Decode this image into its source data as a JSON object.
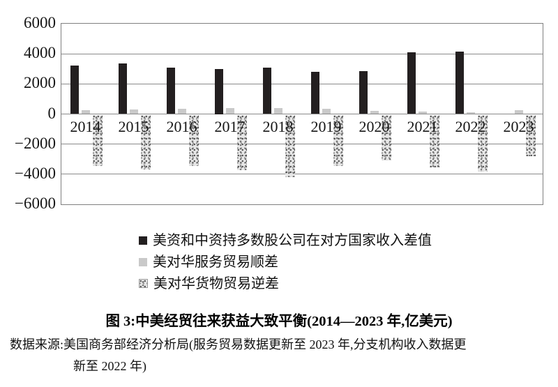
{
  "figure": {
    "caption": "图 3:中美经贸往来获益大致平衡(2014—2023 年,亿美元)",
    "source_line1": "数据来源:美国商务部经济分析局(服务贸易数据更新至 2023 年,分支机构收入数据更",
    "source_line2": "新至 2022 年)"
  },
  "colors": {
    "income_diff_bar": "#231f20",
    "services_bar": "#c9c9c9",
    "goods_bar_base": "#e7e7e7",
    "grid": "#8a8a8a",
    "text": "#161616"
  },
  "chart_data": {
    "type": "bar",
    "title": "中美经贸往来获益大致平衡(2014—2023 年,亿美元)",
    "unit": "亿美元",
    "categories": [
      "2014",
      "2015",
      "2016",
      "2017",
      "2018",
      "2019",
      "2020",
      "2021",
      "2022",
      "2023"
    ],
    "series": [
      {
        "name": "美资和中资持多数股公司在对方国家收入差值",
        "color": "#231f20",
        "style": "solid",
        "values": [
          3200,
          3350,
          3100,
          3000,
          3100,
          2800,
          2850,
          4080,
          4130,
          null
        ]
      },
      {
        "name": "美对华服务贸易顺差",
        "color": "#c9c9c9",
        "style": "solid",
        "values": [
          260,
          320,
          370,
          385,
          390,
          350,
          230,
          150,
          100,
          270
        ]
      },
      {
        "name": "美对华货物贸易逆差",
        "color": "#e7e7e7",
        "style": "speckled",
        "values": [
          -3450,
          -3670,
          -3470,
          -3750,
          -4180,
          -3450,
          -3100,
          -3530,
          -3830,
          -2790
        ]
      }
    ],
    "xlabel": "",
    "ylabel": "",
    "ylim": [
      -6000,
      6000
    ],
    "ytick_interval": 2000,
    "yticks": [
      "6000",
      "4000",
      "2000",
      "0",
      "−2000",
      "−4000",
      "−6000"
    ],
    "grid": true,
    "legend_position": "bottom-left"
  }
}
